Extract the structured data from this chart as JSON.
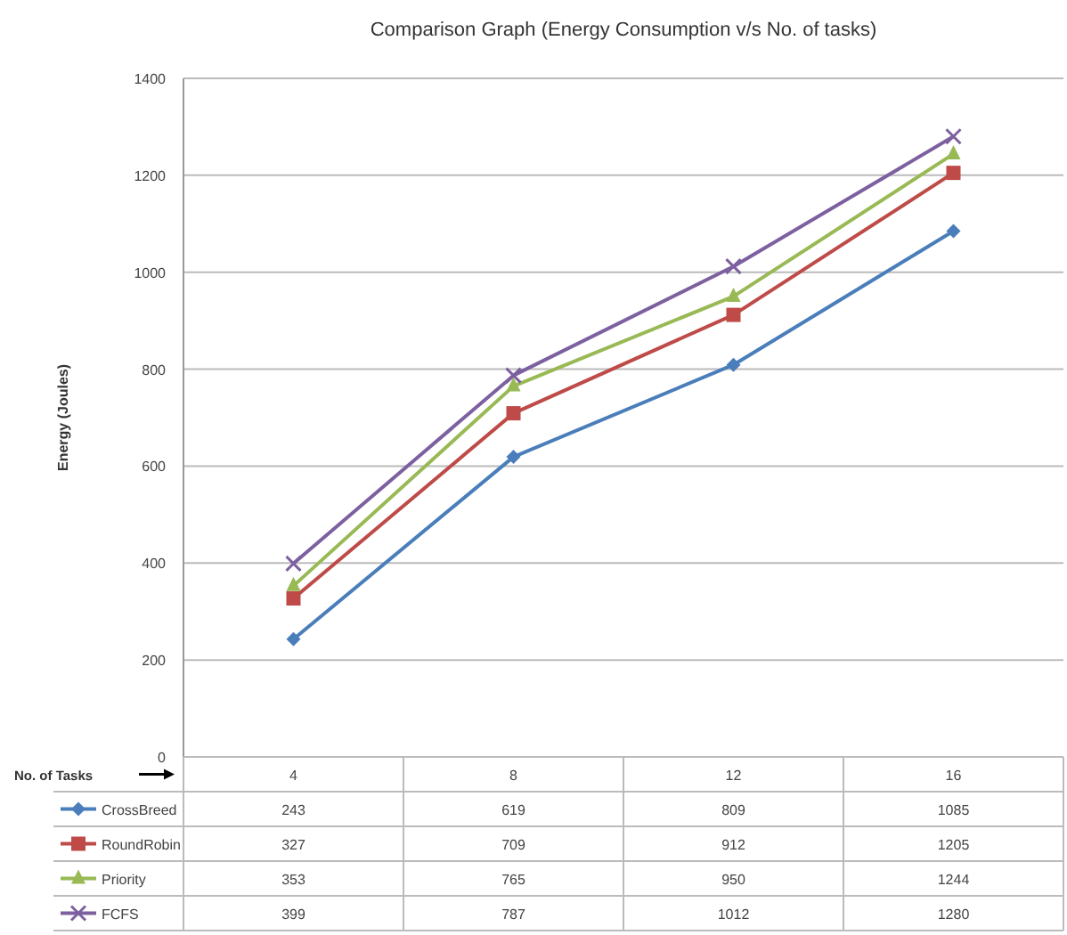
{
  "chart_data": {
    "type": "line",
    "title": "Comparison Graph (Energy Consumption v/s No. of tasks)",
    "xlabel": "No. of Tasks",
    "ylabel": "Energy (Joules)",
    "categories": [
      "4",
      "8",
      "12",
      "16"
    ],
    "series": [
      {
        "name": "CrossBreed",
        "color": "#4a7ebb",
        "marker": "diamond",
        "values": [
          243,
          619,
          809,
          1085
        ]
      },
      {
        "name": "RoundRobin",
        "color": "#be4b48",
        "marker": "square",
        "values": [
          327,
          709,
          912,
          1205
        ]
      },
      {
        "name": "Priority",
        "color": "#98b954",
        "marker": "triangle",
        "values": [
          353,
          765,
          950,
          1244
        ]
      },
      {
        "name": "FCFS",
        "color": "#7d60a0",
        "marker": "cross",
        "values": [
          399,
          787,
          1012,
          1280
        ]
      }
    ],
    "ylim": [
      0,
      1400
    ],
    "yticks": [
      0,
      200,
      400,
      600,
      800,
      1000,
      1200,
      1400
    ],
    "grid": "y",
    "legend": "bottom",
    "data_labels": true
  }
}
